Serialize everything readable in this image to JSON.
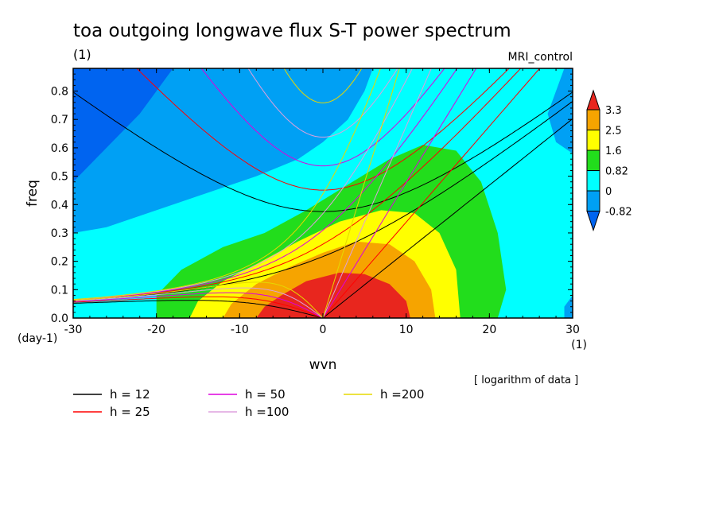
{
  "chart_data": {
    "type": "heatmap",
    "title": "toa outgoing longwave flux S-T power spectrum",
    "subtitle": "(1)",
    "model": "MRI_control",
    "xlabel": "wvn",
    "ylabel": "freq",
    "x_unit": "(1)",
    "y_unit": "(day-1)",
    "xlim": [
      -30,
      30
    ],
    "ylim": [
      0,
      0.88
    ],
    "x_ticks": [
      "-30",
      "-20",
      "-10",
      "0",
      "10",
      "20",
      "30"
    ],
    "y_ticks": [
      "0.0",
      "0.1",
      "0.2",
      "0.3",
      "0.4",
      "0.5",
      "0.6",
      "0.7",
      "0.8"
    ],
    "note": "[ logarithm of data ]",
    "colorbar": {
      "labels": [
        "3.3",
        "2.5",
        "1.6",
        "0.82",
        "0",
        "-0.82"
      ],
      "colors": [
        "#e8261e",
        "#f6a400",
        "#ffff00",
        "#22dd1c",
        "#00ffff",
        "#00a0f4",
        "#0064f0"
      ]
    },
    "field_levels": [
      {
        "min": 3.3,
        "color": "#e8261e",
        "shape": [
          [
            -8,
            0
          ],
          [
            -7,
            0.04
          ],
          [
            -5,
            0.08
          ],
          [
            -2,
            0.13
          ],
          [
            2,
            0.16
          ],
          [
            5,
            0.155
          ],
          [
            8,
            0.12
          ],
          [
            10,
            0.06
          ],
          [
            10.5,
            0
          ]
        ]
      },
      {
        "min": 2.5,
        "color": "#f6a400",
        "shape": [
          [
            -12,
            0
          ],
          [
            -11,
            0.05
          ],
          [
            -8,
            0.12
          ],
          [
            -4,
            0.18
          ],
          [
            0,
            0.23
          ],
          [
            4,
            0.27
          ],
          [
            8,
            0.26
          ],
          [
            11,
            0.2
          ],
          [
            13,
            0.1
          ],
          [
            13.5,
            0
          ]
        ]
      },
      {
        "min": 1.6,
        "color": "#ffff00",
        "shape": [
          [
            -16,
            0
          ],
          [
            -15,
            0.06
          ],
          [
            -12,
            0.13
          ],
          [
            -8,
            0.19
          ],
          [
            -3,
            0.27
          ],
          [
            2,
            0.34
          ],
          [
            7,
            0.38
          ],
          [
            11,
            0.37
          ],
          [
            14,
            0.3
          ],
          [
            16,
            0.17
          ],
          [
            16.5,
            0
          ]
        ]
      },
      {
        "min": 0.82,
        "color": "#22dd1c",
        "shape": [
          [
            -20,
            0
          ],
          [
            -20,
            0.08
          ],
          [
            -17,
            0.17
          ],
          [
            -12,
            0.25
          ],
          [
            -7,
            0.3
          ],
          [
            -2,
            0.38
          ],
          [
            3,
            0.47
          ],
          [
            8,
            0.56
          ],
          [
            12,
            0.61
          ],
          [
            16,
            0.59
          ],
          [
            19,
            0.48
          ],
          [
            21,
            0.3
          ],
          [
            22,
            0.1
          ],
          [
            21,
            0
          ]
        ]
      }
    ],
    "dispersion_curves": [
      {
        "h": 12,
        "label": "h = 12",
        "color": "#000000"
      },
      {
        "h": 25,
        "label": "h = 25",
        "color": "#ff0000"
      },
      {
        "h": 50,
        "label": "h = 50",
        "color": "#dd00dd"
      },
      {
        "h": 100,
        "label": "h =100",
        "color": "#dda0dd"
      },
      {
        "h": 200,
        "label": "h =200",
        "color": "#e6d800"
      }
    ]
  }
}
